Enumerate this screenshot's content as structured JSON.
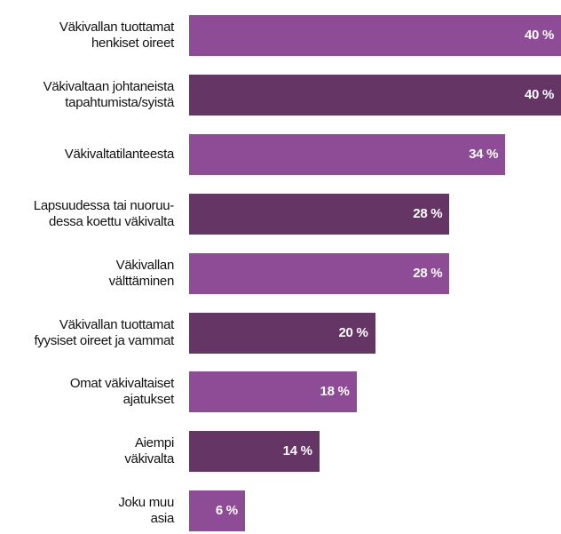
{
  "chart_data": {
    "type": "bar",
    "orientation": "horizontal",
    "categories": [
      "Väkivallan tuottamat\nhenkiset oireet",
      "Väkivaltaan johtaneista\ntapahtumista/syistä",
      "Väkivaltatilanteesta",
      "Lapsuudessa tai nuoruu-\ndessa koettu väkivalta",
      "Väkivallan\nvälttäminen",
      "Väkivallan tuottamat\nfyysiset oireet ja vammat",
      "Omat väkivaltaiset\najatukset",
      "Aiempi\nväkivalta",
      "Joku muu\nasia"
    ],
    "values": [
      40,
      40,
      34,
      28,
      28,
      20,
      18,
      14,
      6
    ],
    "value_labels": [
      "40 %",
      "40 %",
      "34 %",
      "28 %",
      "28 %",
      "20 %",
      "18 %",
      "14 %",
      "6 %"
    ],
    "colors": [
      "#8e4c96",
      "#653566",
      "#8e4c96",
      "#653566",
      "#8e4c96",
      "#653566",
      "#8e4c96",
      "#653566",
      "#8e4c96"
    ]
  }
}
